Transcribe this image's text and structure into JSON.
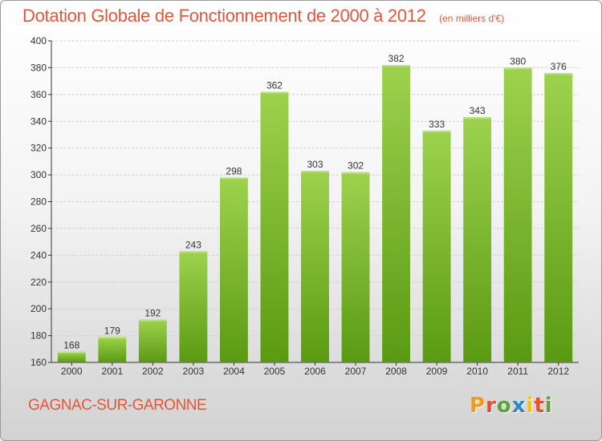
{
  "title": "Dotation Globale de Fonctionnement de 2000 à 2012",
  "unit_note": "(en milliers d'€)",
  "city": "GAGNAC-SUR-GARONNE",
  "logo": {
    "text": "Proxiti",
    "colors": [
      "#f39a1f",
      "#e8502d",
      "#5aa43a",
      "#2e86c8",
      "#f5c312",
      "#e8502d",
      "#5aa43a"
    ]
  },
  "colors": {
    "accent": "#e0573c",
    "bar_top": "#9ed24e",
    "bar_bottom": "#5a9a12",
    "grid": "#d0d0d0",
    "axis": "#333333"
  },
  "chart_data": {
    "type": "bar",
    "title": "Dotation Globale de Fonctionnement de 2000 à 2012",
    "subtitle": "(en milliers d'€)",
    "categories": [
      "2000",
      "2001",
      "2002",
      "2003",
      "2004",
      "2005",
      "2006",
      "2007",
      "2008",
      "2009",
      "2010",
      "2011",
      "2012"
    ],
    "values": [
      168,
      179,
      192,
      243,
      298,
      362,
      303,
      302,
      382,
      333,
      343,
      380,
      376
    ],
    "ylim": [
      160,
      400
    ],
    "yticks": [
      160,
      180,
      200,
      220,
      240,
      260,
      280,
      300,
      320,
      340,
      360,
      380,
      400
    ],
    "grid": true,
    "xlabel": "",
    "ylabel": ""
  }
}
